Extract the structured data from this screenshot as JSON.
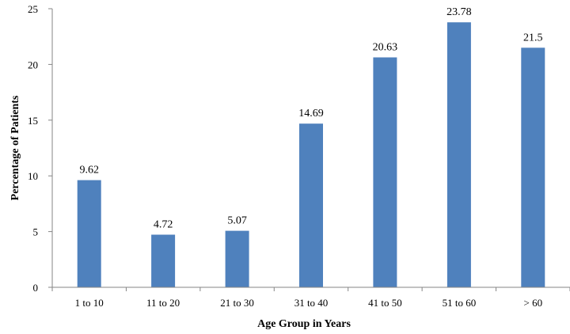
{
  "chart_data": {
    "type": "bar",
    "title": "",
    "xlabel": "Age Group  in Years",
    "ylabel": "Percentage of Patients",
    "categories": [
      "1 to 10",
      "11 to 20",
      "21 to 30",
      "31 to 40",
      "41 to 50",
      "51 to 60",
      "> 60"
    ],
    "values": [
      9.62,
      4.72,
      5.07,
      14.69,
      20.63,
      23.78,
      21.5
    ],
    "data_labels": [
      "9.62",
      "4.72",
      "5.07",
      "14.69",
      "20.63",
      "23.78",
      "21.5"
    ],
    "ylim": [
      0,
      25
    ],
    "yticks": [
      0,
      5,
      10,
      15,
      20,
      25
    ],
    "ytick_labels": [
      "0",
      "5",
      "10",
      "15",
      "20",
      "25"
    ],
    "grid": false,
    "legend": "none",
    "colors": {
      "bar": "#4F81BD",
      "axis": "#868686"
    }
  }
}
